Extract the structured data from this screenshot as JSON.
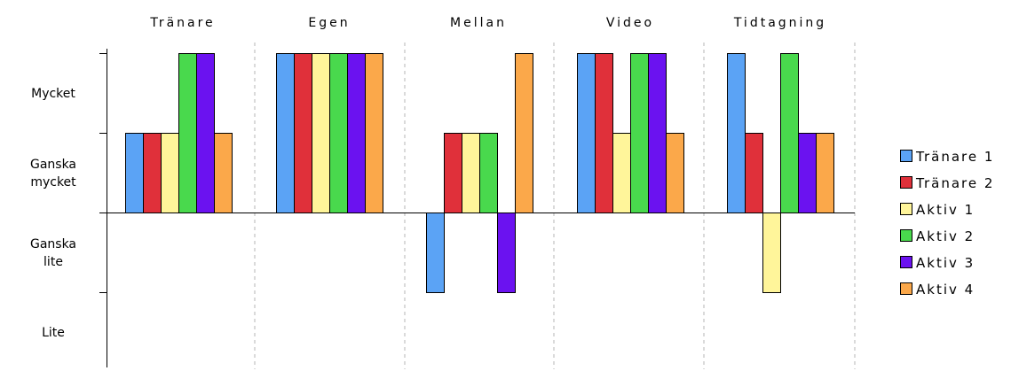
{
  "chart_data": {
    "type": "bar",
    "categories": [
      "Tränare",
      "Egen",
      "Mellan",
      "Video",
      "Tidtagning"
    ],
    "y_levels": [
      "Lite",
      "Ganska lite",
      "Ganska mycket",
      "Mycket"
    ],
    "y_level_lines": [
      [
        "Mycket"
      ],
      [
        "Ganska",
        "mycket"
      ],
      [
        "Ganska",
        "lite"
      ],
      [
        "Lite"
      ]
    ],
    "ylim": [
      -2,
      2
    ],
    "baseline": 0,
    "grid": false,
    "legend_position": "right",
    "series": [
      {
        "name": "Tränare 1",
        "color": "#5ba3f5",
        "values": [
          1,
          2,
          -1,
          2,
          2
        ]
      },
      {
        "name": "Tränare 2",
        "color": "#e0303a",
        "values": [
          1,
          2,
          1,
          2,
          1
        ]
      },
      {
        "name": "Aktiv 1",
        "color": "#fff59a",
        "values": [
          1,
          2,
          1,
          1,
          -1
        ]
      },
      {
        "name": "Aktiv 2",
        "color": "#49d94d",
        "values": [
          2,
          2,
          1,
          2,
          2
        ]
      },
      {
        "name": "Aktiv 3",
        "color": "#6b12f0",
        "values": [
          2,
          2,
          -1,
          2,
          1
        ]
      },
      {
        "name": "Aktiv 4",
        "color": "#fba84a",
        "values": [
          1,
          2,
          2,
          1,
          1
        ]
      }
    ]
  }
}
